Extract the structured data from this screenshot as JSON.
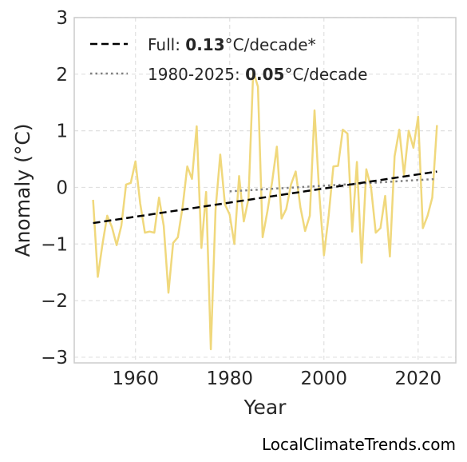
{
  "chart_data": {
    "type": "line",
    "xlabel": "Year",
    "ylabel": "Anomaly (°C)",
    "xlim": [
      1947,
      2028
    ],
    "ylim": [
      -3.1,
      3.0
    ],
    "xticks": [
      1960,
      1980,
      2000,
      2020
    ],
    "xtick_labels": [
      "1960",
      "1980",
      "2000",
      "2020"
    ],
    "yticks": [
      -3,
      -2,
      -1,
      0,
      1,
      2,
      3
    ],
    "ytick_labels": [
      "−3",
      "−2",
      "−1",
      "0",
      "1",
      "2",
      "3"
    ],
    "grid": true,
    "legend_position": "top-left",
    "series": [
      {
        "color": "#f0d87c",
        "x": [
          1951,
          1952,
          1953,
          1954,
          1955,
          1956,
          1957,
          1958,
          1959,
          1960,
          1961,
          1962,
          1963,
          1964,
          1965,
          1966,
          1967,
          1968,
          1969,
          1970,
          1971,
          1972,
          1973,
          1974,
          1975,
          1976,
          1977,
          1978,
          1979,
          1980,
          1981,
          1982,
          1983,
          1984,
          1985,
          1986,
          1987,
          1988,
          1989,
          1990,
          1991,
          1992,
          1993,
          1994,
          1995,
          1996,
          1997,
          1998,
          1999,
          2000,
          2001,
          2002,
          2003,
          2004,
          2005,
          2006,
          2007,
          2008,
          2009,
          2010,
          2011,
          2012,
          2013,
          2014,
          2015,
          2016,
          2017,
          2018,
          2019,
          2020,
          2021,
          2022,
          2023,
          2024
        ],
        "y": [
          -0.22,
          -1.58,
          -1.0,
          -0.5,
          -0.7,
          -1.02,
          -0.68,
          0.05,
          0.08,
          0.46,
          -0.28,
          -0.8,
          -0.78,
          -0.8,
          -0.18,
          -0.68,
          -1.86,
          -0.98,
          -0.88,
          -0.35,
          0.37,
          0.15,
          1.08,
          -1.07,
          -0.08,
          -2.86,
          -0.4,
          0.58,
          -0.3,
          -0.48,
          -1.0,
          0.2,
          -0.6,
          -0.2,
          2.05,
          1.78,
          -0.88,
          -0.42,
          0.1,
          0.72,
          -0.55,
          -0.38,
          0.05,
          0.28,
          -0.35,
          -0.77,
          -0.5,
          1.36,
          -0.1,
          -1.2,
          -0.5,
          0.37,
          0.38,
          1.02,
          0.95,
          -0.78,
          0.45,
          -1.33,
          0.32,
          0.0,
          -0.8,
          -0.72,
          -0.15,
          -1.22,
          0.55,
          1.02,
          0.22,
          1.0,
          0.7,
          1.25,
          -0.72,
          -0.5,
          -0.18,
          1.1
        ]
      }
    ],
    "trend_full": {
      "name_prefix": "Full: ",
      "rate": "0.13",
      "name_suffix": "°C/decade*",
      "color": "#000000",
      "x": [
        1951,
        2024
      ],
      "y": [
        -0.63,
        0.28
      ]
    },
    "trend_recent": {
      "name_prefix": "1980-2025: ",
      "rate": "0.05",
      "name_suffix": "°C/decade",
      "color": "#808080",
      "x": [
        1980,
        2024
      ],
      "y": [
        -0.07,
        0.15
      ]
    }
  },
  "watermark": "LocalClimateTrends.com"
}
